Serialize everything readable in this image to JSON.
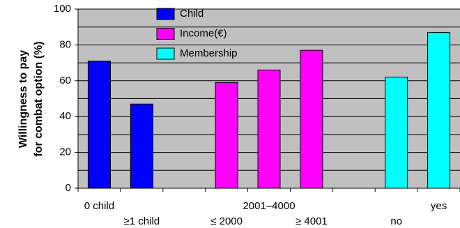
{
  "chart_data": {
    "type": "bar",
    "ylabel": [
      "Willingness to pay",
      "for combat option (%)"
    ],
    "categories": [
      "0 child",
      "≥1 child",
      null,
      "≤ 2000",
      "2001–4000",
      "≥ 4001",
      null,
      "no",
      "yes"
    ],
    "series": [
      {
        "name": "Child",
        "color": "#0000ff",
        "values": [
          71,
          47,
          null,
          null,
          null,
          null,
          null,
          null,
          null
        ]
      },
      {
        "name": "Income(€)",
        "color": "#ff00ff",
        "values": [
          null,
          null,
          null,
          59,
          66,
          77,
          null,
          null,
          null
        ]
      },
      {
        "name": "Membership",
        "color": "#00ffff",
        "values": [
          null,
          null,
          null,
          null,
          null,
          null,
          null,
          62,
          87
        ]
      }
    ],
    "ylim": [
      0,
      100
    ],
    "yticks": [
      0,
      20,
      40,
      60,
      80,
      100
    ],
    "minor_yticks": [
      10,
      30,
      50,
      70,
      90
    ],
    "grid": true,
    "legend": "top"
  }
}
